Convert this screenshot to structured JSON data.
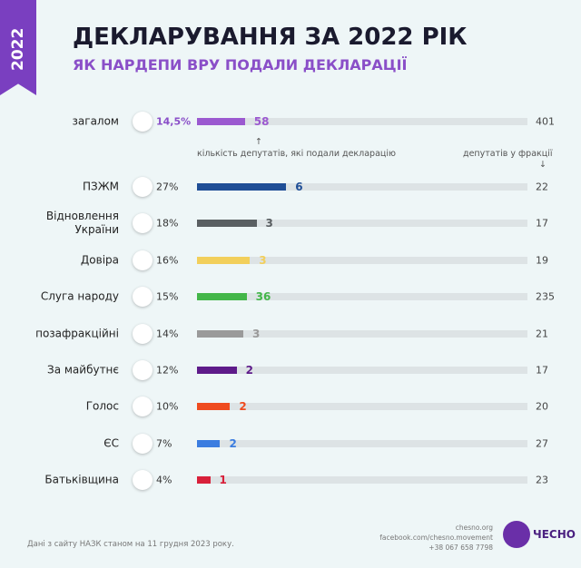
{
  "badge": "2022",
  "footer": {
    "source": "Дані з сайту НАЗК станом на 11 грудня 2023 року.",
    "site": "chesno.org",
    "facebook": "facebook.com/chesno.movement",
    "phone": "+38 067 658 7798",
    "logo": "ЧЕСНО"
  },
  "chart_data": {
    "type": "bar",
    "orientation": "horizontal",
    "title": "ДЕКЛАРУВАННЯ ЗА 2022 РІК",
    "subtitle": "ЯК НАРДЕПИ ВРУ ПОДАЛИ ДЕКЛАРАЦІЇ",
    "annotations": {
      "declared": "кількість депутатів, які подали декларацію",
      "total": "депутатів у фракції"
    },
    "categories": [
      "загалом",
      "ПЗЖМ",
      "Відновлення України",
      "Довіра",
      "Слуга народу",
      "позафракційні",
      "За майбутнє",
      "Голос",
      "ЄС",
      "Батьківщина"
    ],
    "values": [
      14.5,
      27,
      18,
      16,
      15,
      14,
      12,
      10,
      7,
      4
    ],
    "value_labels": [
      "14,5%",
      "27%",
      "18%",
      "16%",
      "15%",
      "14%",
      "12%",
      "10%",
      "7%",
      "4%"
    ],
    "declared": [
      58,
      6,
      3,
      3,
      36,
      3,
      2,
      2,
      2,
      1
    ],
    "totals": [
      401,
      22,
      17,
      19,
      235,
      21,
      17,
      20,
      27,
      23
    ],
    "colors": [
      "#9b59d0",
      "#1f4e96",
      "#5a5f62",
      "#f2cf5b",
      "#43b649",
      "#9a9a9a",
      "#5e1b8a",
      "#ef4b1f",
      "#3b7de0",
      "#d8203a"
    ],
    "xlim": [
      0,
      100
    ]
  }
}
